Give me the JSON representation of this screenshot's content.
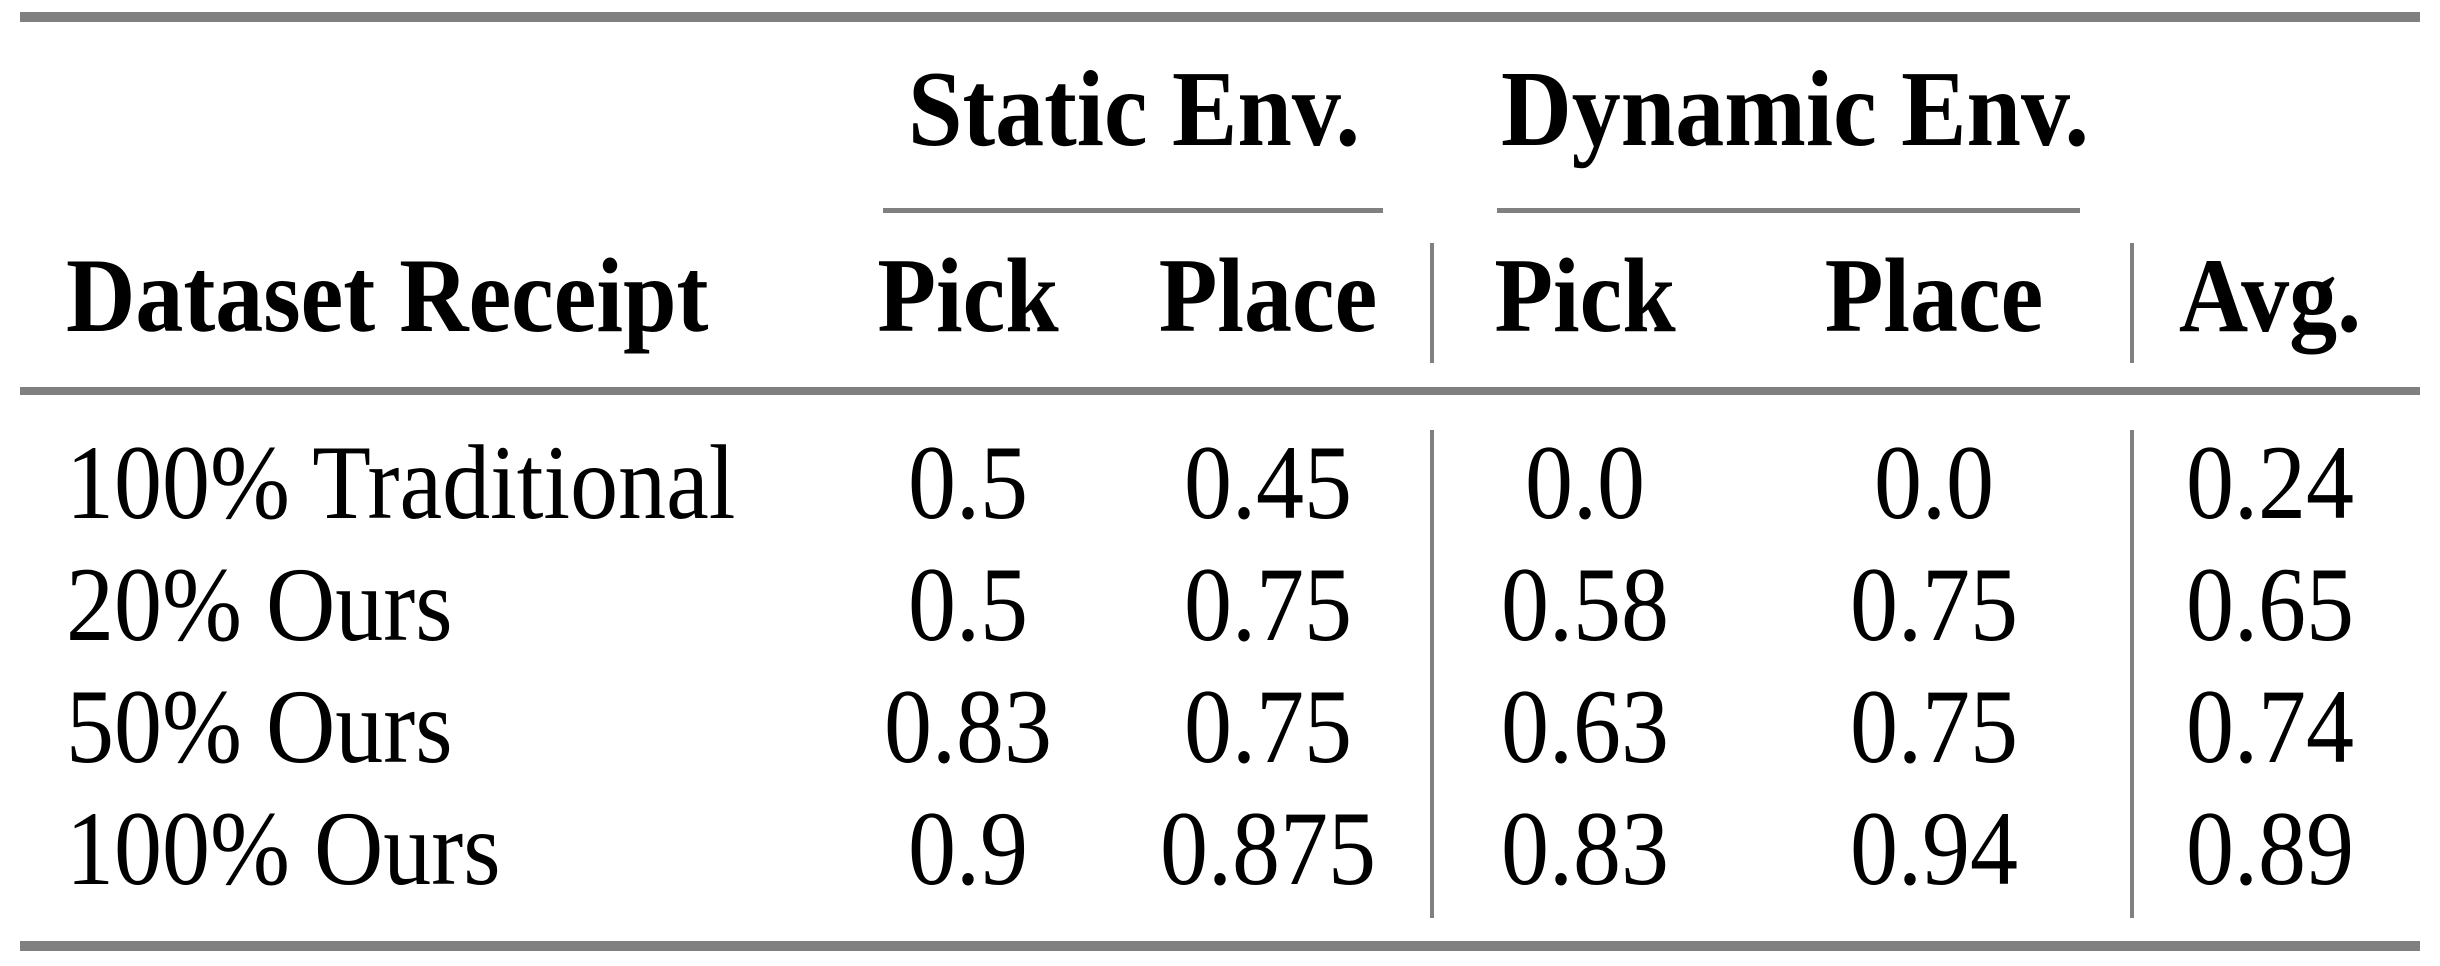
{
  "table": {
    "groups": [
      {
        "label": "Static Env."
      },
      {
        "label": "Dynamic Env."
      }
    ],
    "columns": {
      "row_header": "Dataset Receipt",
      "static_pick": "Pick",
      "static_place": "Place",
      "dynamic_pick": "Pick",
      "dynamic_place": "Place",
      "avg": "Avg."
    },
    "rows": [
      {
        "label": "100% Traditional",
        "static_pick": "0.5",
        "static_place": "0.45",
        "dynamic_pick": "0.0",
        "dynamic_place": "0.0",
        "avg": "0.24"
      },
      {
        "label": "20% Ours",
        "static_pick": "0.5",
        "static_place": "0.75",
        "dynamic_pick": "0.58",
        "dynamic_place": "0.75",
        "avg": "0.65"
      },
      {
        "label": "50% Ours",
        "static_pick": "0.83",
        "static_place": "0.75",
        "dynamic_pick": "0.63",
        "dynamic_place": "0.75",
        "avg": "0.74"
      },
      {
        "label": "100% Ours",
        "static_pick": "0.9",
        "static_place": "0.875",
        "dynamic_pick": "0.83",
        "dynamic_place": "0.94",
        "avg": "0.89"
      }
    ],
    "colors": {
      "rule": "#808080",
      "text": "#000000",
      "background": "#ffffff"
    }
  },
  "chart_data": {
    "type": "table",
    "title": "",
    "column_groups": [
      "Static Env.",
      "Dynamic Env."
    ],
    "columns": [
      "Dataset Receipt",
      "Static Env. Pick",
      "Static Env. Place",
      "Dynamic Env. Pick",
      "Dynamic Env. Place",
      "Avg."
    ],
    "rows": [
      [
        "100% Traditional",
        0.5,
        0.45,
        0.0,
        0.0,
        0.24
      ],
      [
        "20% Ours",
        0.5,
        0.75,
        0.58,
        0.75,
        0.65
      ],
      [
        "50% Ours",
        0.83,
        0.75,
        0.63,
        0.75,
        0.74
      ],
      [
        "100% Ours",
        0.9,
        0.875,
        0.83,
        0.94,
        0.89
      ]
    ]
  }
}
